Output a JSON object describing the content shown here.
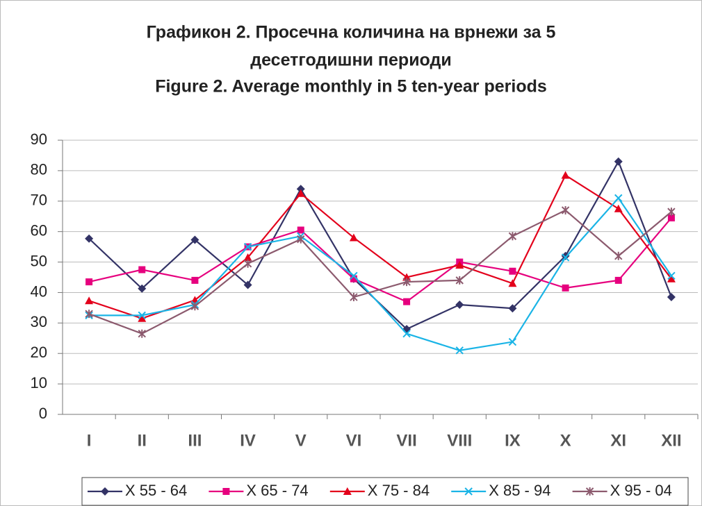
{
  "chart_data": {
    "type": "line",
    "title": "Графикон 2. Просечна количина на врнежи за  5",
    "subtitle": "десетгодишни периоди",
    "title_en": "Figure 2. Average monthly in 5 ten-year periods",
    "categories": [
      "I",
      "II",
      "III",
      "IV",
      "V",
      "VI",
      "VII",
      "VIII",
      "IX",
      "X",
      "XI",
      "XII"
    ],
    "series": [
      {
        "name": "X 55 - 64",
        "color": "#333366",
        "marker": "diamond",
        "values": [
          57.7,
          41.3,
          57.3,
          42.5,
          74,
          44.5,
          28,
          36,
          34.8,
          52,
          83,
          38.5
        ]
      },
      {
        "name": "X 65 - 74",
        "color": "#e6007e",
        "marker": "square",
        "values": [
          43.5,
          47.5,
          44,
          55,
          60.5,
          44.5,
          37,
          50,
          47,
          41.5,
          44,
          64.5
        ]
      },
      {
        "name": "X 75 - 84",
        "color": "#e3001b",
        "marker": "triangle",
        "values": [
          37.3,
          31.5,
          37.5,
          51.5,
          72.5,
          58,
          45,
          49,
          43,
          78.5,
          67.5,
          44.5
        ]
      },
      {
        "name": "X 85 - 94",
        "color": "#1ab4e6",
        "marker": "x",
        "values": [
          32.5,
          32.5,
          36,
          55,
          58.5,
          45.5,
          26.5,
          21,
          23.8,
          51.5,
          71,
          45.5
        ]
      },
      {
        "name": "X 95 - 04",
        "color": "#8c5a6e",
        "marker": "star",
        "values": [
          33,
          26.5,
          35.5,
          49.5,
          57.5,
          38.5,
          43.5,
          44,
          58.5,
          67,
          52,
          66.5
        ]
      }
    ],
    "ylim": [
      0,
      90
    ],
    "yticks": [
      0,
      10,
      20,
      30,
      40,
      50,
      60,
      70,
      80,
      90
    ],
    "grid": true,
    "legend": "bottom"
  }
}
